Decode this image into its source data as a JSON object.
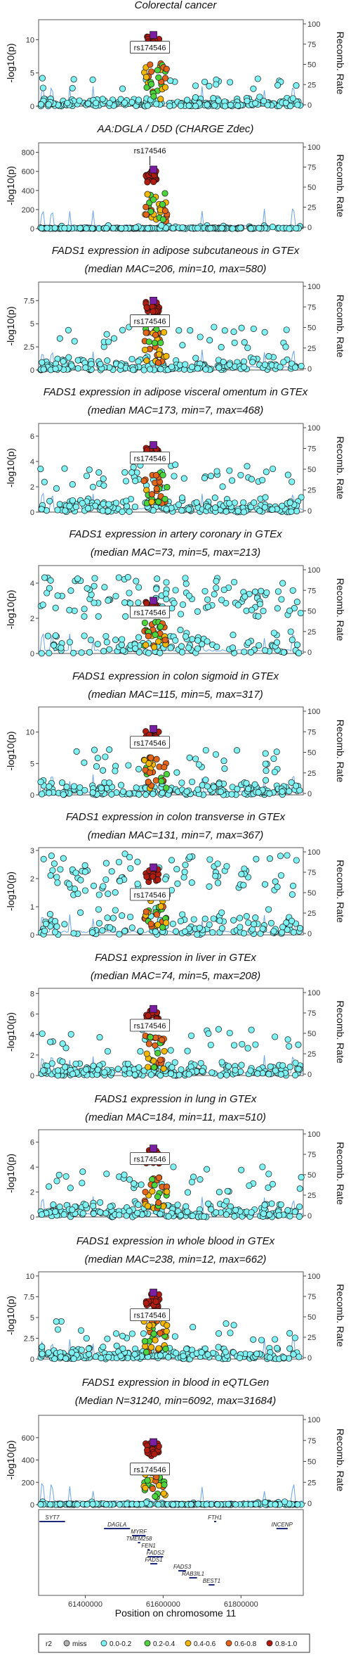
{
  "legend": {
    "title": "r2",
    "items": [
      {
        "label": "miss",
        "color": "#b0b0b0"
      },
      {
        "label": "0.0-0.2",
        "color": "#7ff3f3"
      },
      {
        "label": "0.2-0.4",
        "color": "#4cd43c"
      },
      {
        "label": "0.4-0.6",
        "color": "#f2b705"
      },
      {
        "label": "0.6-0.8",
        "color": "#e2651a"
      },
      {
        "label": "0.8-1.0",
        "color": "#b01c10"
      }
    ],
    "lead_color": "#7a1fa2"
  },
  "y_label": "-log10(p)",
  "y2_label": "Recomb. Rate",
  "x_label": "Position on chromosome 11",
  "lead_snp": "rs174546",
  "chart_data": [
    {
      "type": "scatter",
      "title": [
        "Colorectal cancer"
      ],
      "ylim": [
        0,
        13
      ],
      "yticks": [
        0,
        5,
        10
      ],
      "peak": 10.7,
      "label_y": 8.7,
      "bg": 1.5,
      "hot": 0.1,
      "arrow": false
    },
    {
      "type": "scatter",
      "title": [
        "AA:DGLA / D5D (CHARGE Zdec)"
      ],
      "ylim": [
        0,
        900
      ],
      "yticks": [
        0,
        200,
        400,
        600,
        800
      ],
      "peak": 620,
      "label_y": 760,
      "bg": 12,
      "hot": 0.05,
      "arrow": true
    },
    {
      "type": "scatter",
      "title": [
        "FADS1 expression in adipose subcutaneous in GTEx",
        "(median MAC=206, min=10, max=580)"
      ],
      "ylim": [
        0,
        9.5
      ],
      "yticks": [
        0,
        2.5,
        5,
        7.5
      ],
      "peak": 7.5,
      "label_y": 5.2,
      "bg": 1.6,
      "hot": 0.15,
      "arrow": false
    },
    {
      "type": "scatter",
      "title": [
        "FADS1 expression in adipose visceral omentum in GTEx",
        "(median MAC=173, min=7, max=468)"
      ],
      "ylim": [
        0,
        7
      ],
      "yticks": [
        0,
        2,
        4,
        6
      ],
      "peak": 5.3,
      "label_y": 4.2,
      "bg": 1.3,
      "hot": 0.2,
      "arrow": false
    },
    {
      "type": "scatter",
      "title": [
        "FADS1 expression in artery coronary in GTEx",
        "(median MAC=73, min=5, max=213)"
      ],
      "ylim": [
        0,
        5
      ],
      "yticks": [
        0,
        2,
        4
      ],
      "peak": 3.0,
      "label_y": 2.3,
      "bg": 1.5,
      "hot": 0.5,
      "arrow": false
    },
    {
      "type": "scatter",
      "title": [
        "FADS1 expression in colon sigmoid in GTEx",
        "(median MAC=115, min=5, max=317)"
      ],
      "ylim": [
        0,
        14
      ],
      "yticks": [
        0,
        5,
        10
      ],
      "peak": 10.5,
      "label_y": 8.2,
      "bg": 2.5,
      "hot": 0.1,
      "arrow": false
    },
    {
      "type": "scatter",
      "title": [
        "FADS1 expression in colon transverse in GTEx",
        "(median MAC=131, min=7, max=367)"
      ],
      "ylim": [
        0,
        3.1
      ],
      "yticks": [
        0,
        1,
        2,
        3
      ],
      "peak": 2.4,
      "label_y": 1.4,
      "bg": 1.0,
      "hot": 0.4,
      "arrow": false
    },
    {
      "type": "scatter",
      "title": [
        "FADS1 expression in liver in GTEx",
        "(median MAC=74, min=5, max=208)"
      ],
      "ylim": [
        0,
        8.5
      ],
      "yticks": [
        0,
        2,
        4,
        6,
        8
      ],
      "peak": 6.5,
      "label_y": 4.8,
      "bg": 1.6,
      "hot": 0.1,
      "arrow": false
    },
    {
      "type": "scatter",
      "title": [
        "FADS1 expression in lung in GTEx",
        "(median MAC=184, min=11, max=510)"
      ],
      "ylim": [
        0,
        7
      ],
      "yticks": [
        0,
        2,
        4,
        6
      ],
      "peak": 5.5,
      "label_y": 4.6,
      "bg": 1.4,
      "hot": 0.15,
      "arrow": false
    },
    {
      "type": "scatter",
      "title": [
        "FADS1 expression in whole blood in GTEx",
        "(median MAC=238, min=12, max=662)"
      ],
      "ylim": [
        0,
        10.5
      ],
      "yticks": [
        0,
        2.5,
        5,
        7.5,
        10
      ],
      "peak": 8.0,
      "label_y": 5.2,
      "bg": 1.6,
      "hot": 0.1,
      "arrow": false
    },
    {
      "type": "scatter",
      "title": [
        "FADS1 expression in blood in eQTLGen",
        "(Median N=31240, min=6092, max=31684)"
      ],
      "ylim": [
        0,
        800
      ],
      "yticks": [
        0,
        200,
        400,
        600
      ],
      "peak": 560,
      "label_y": 310,
      "bg": 10,
      "hot": 0.05,
      "arrow": false
    }
  ],
  "recomb_ticks": [
    0,
    25,
    50,
    75,
    100
  ],
  "xaxis": {
    "range": [
      61280000,
      61960000
    ],
    "ticks": [
      61400000,
      61600000,
      61800000
    ],
    "tick_labels": [
      "61400000",
      "61600000",
      "61800000"
    ]
  },
  "genes": [
    {
      "name": "SYT7",
      "start": 61282000,
      "end": 61348000,
      "row": 0,
      "color": "#1f2a7a"
    },
    {
      "name": "DAGLA",
      "start": 61448000,
      "end": 61515000,
      "row": 1,
      "color": "#1f2a7a"
    },
    {
      "name": "MYRF",
      "start": 61520000,
      "end": 61555000,
      "row": 2,
      "color": "#1f2a7a"
    },
    {
      "name": "TMEM258",
      "start": 61535000,
      "end": 61541000,
      "row": 3,
      "color": "#1f2a7a"
    },
    {
      "name": "FEN1",
      "start": 61560000,
      "end": 61565000,
      "row": 4,
      "color": "#1f2a7a"
    },
    {
      "name": "FADS2",
      "start": 61560000,
      "end": 61600000,
      "row": 5,
      "color": "#1f2a7a"
    },
    {
      "name": "FADS1",
      "start": 61567000,
      "end": 61585000,
      "row": 6,
      "color": "#1f2a7a"
    },
    {
      "name": "FADS3",
      "start": 61639000,
      "end": 61659000,
      "row": 7,
      "color": "#1f2a7a"
    },
    {
      "name": "RAB3IL1",
      "start": 61667000,
      "end": 61687000,
      "row": 8,
      "color": "#1f2a7a"
    },
    {
      "name": "BEST1",
      "start": 61717000,
      "end": 61732000,
      "row": 9,
      "color": "#1f2a7a"
    },
    {
      "name": "FTH1",
      "start": 61731000,
      "end": 61735000,
      "row": 0,
      "color": "#1f2a7a"
    },
    {
      "name": "INCENP",
      "start": 61891000,
      "end": 61920000,
      "row": 1,
      "color": "#1f2a7a"
    }
  ]
}
